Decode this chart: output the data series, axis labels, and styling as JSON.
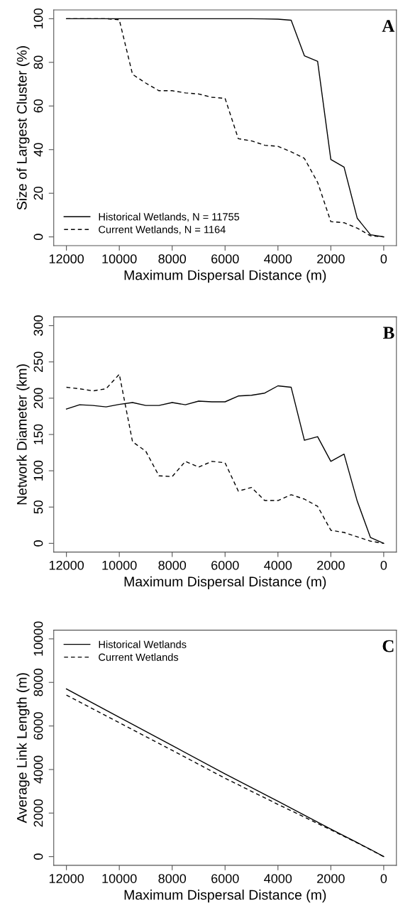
{
  "chart_data": [
    {
      "type": "line",
      "xlabel": "Maximum Dispersal Distance (m)",
      "ylabel": "Size of Largest Cluster (%)",
      "annotations": [
        "A"
      ],
      "legend": "bottom left",
      "x": [
        12000,
        11500,
        11000,
        10500,
        10000,
        9500,
        9000,
        8500,
        8000,
        7500,
        7000,
        6500,
        6000,
        5500,
        5000,
        4500,
        4000,
        3500,
        3000,
        2500,
        2000,
        1500,
        1000,
        500,
        0
      ],
      "xlim": [
        12480,
        -480
      ],
      "xticks": [
        12000,
        10000,
        8000,
        6000,
        4000,
        2000,
        0
      ],
      "ylim": [
        -4,
        104
      ],
      "yticks": [
        0,
        20,
        40,
        60,
        80,
        100
      ],
      "grid": false,
      "series": [
        {
          "name": "Historical Wetlands, N = 11755",
          "color": "#000000",
          "line_style": "solid",
          "values": [
            100,
            100,
            100,
            100,
            100,
            100,
            100,
            100,
            100,
            100,
            100,
            100,
            100,
            100,
            100,
            99.9,
            99.8,
            99.3,
            83,
            80.5,
            35.5,
            32,
            8.5,
            1,
            0
          ]
        },
        {
          "name": "Current Wetlands, N = 1164",
          "color": "#000000",
          "line_style": "dashed",
          "values": [
            100,
            100,
            100,
            100,
            99.5,
            74.5,
            70.5,
            67,
            67,
            66,
            65.5,
            64,
            63.5,
            45,
            44,
            42,
            41.5,
            39,
            36,
            25,
            7,
            6.5,
            4,
            0.5,
            0
          ]
        }
      ]
    },
    {
      "type": "line",
      "xlabel": "Maximum Dispersal Distance (m)",
      "ylabel": "Network Diameter (km)",
      "annotations": [
        "B"
      ],
      "x": [
        12000,
        11500,
        11000,
        10500,
        10000,
        9500,
        9000,
        8500,
        8000,
        7500,
        7000,
        6500,
        6000,
        5500,
        5000,
        4500,
        4000,
        3500,
        3000,
        2500,
        2000,
        1500,
        1000,
        500,
        0
      ],
      "xlim": [
        12480,
        -480
      ],
      "xticks": [
        12000,
        10000,
        8000,
        6000,
        4000,
        2000,
        0
      ],
      "ylim": [
        -12,
        312
      ],
      "yticks": [
        0,
        50,
        100,
        150,
        200,
        250,
        300
      ],
      "grid": false,
      "series": [
        {
          "color": "#000000",
          "line_style": "solid",
          "values": [
            185,
            191,
            190,
            188,
            191.5,
            194,
            190,
            190,
            194,
            191,
            196,
            195,
            195,
            203,
            204,
            207,
            217,
            215,
            142,
            147,
            113,
            123,
            58,
            8,
            0
          ]
        },
        {
          "color": "#000000",
          "line_style": "dashed",
          "values": [
            215,
            213,
            210,
            213,
            233,
            140,
            127,
            93,
            92,
            113,
            105,
            113,
            111,
            72,
            77,
            59,
            59,
            67,
            61,
            51,
            18,
            15,
            9,
            3,
            0
          ]
        }
      ]
    },
    {
      "type": "line",
      "xlabel": "Maximum Dispersal Distance (m)",
      "ylabel": "Average Link Length (m)",
      "annotations": [
        "C"
      ],
      "legend": "top left",
      "x": [
        12000,
        10000,
        8000,
        6000,
        4000,
        2000,
        1000,
        500,
        0
      ],
      "xlim": [
        12480,
        -480
      ],
      "xticks": [
        12000,
        10000,
        8000,
        6000,
        4000,
        2000,
        0
      ],
      "ylim": [
        -400,
        10400
      ],
      "yticks": [
        0,
        2000,
        4000,
        6000,
        8000,
        10000
      ],
      "grid": false,
      "series": [
        {
          "name": "Historical Wetlands",
          "color": "#000000",
          "line_style": "solid",
          "values": [
            7700,
            6400,
            5100,
            3800,
            2540,
            1260,
            640,
            330,
            0
          ]
        },
        {
          "name": "Current Wetlands",
          "color": "#000000",
          "line_style": "dashed",
          "values": [
            7420,
            6150,
            4880,
            3600,
            2400,
            1230,
            630,
            320,
            0
          ]
        }
      ]
    }
  ]
}
